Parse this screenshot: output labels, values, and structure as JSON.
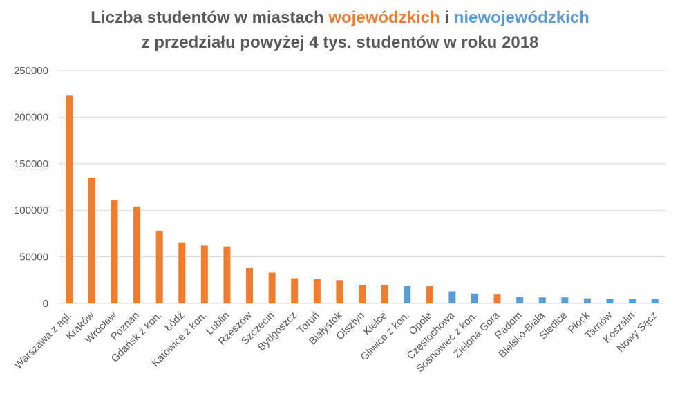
{
  "title": {
    "line1_part1": "Liczba studentów w miastach ",
    "line1_voiv": "wojewódzkich",
    "line1_part2": " i ",
    "line1_nonvoiv": "niewojewódzkich",
    "line2": "z przedziału powyżej 4 tys. studentów w roku 2018"
  },
  "colors": {
    "voivodeship": "#ED7D31",
    "non_voivodeship": "#5B9BD5",
    "grid": "#D9D9D9",
    "text": "#595959"
  },
  "chart_data": {
    "type": "bar",
    "title": "Liczba studentów w miastach wojewódzkich i niewojewódzkich z przedziału powyżej 4 tys. studentów w roku 2018",
    "xlabel": "",
    "ylabel": "",
    "ylim": [
      0,
      250000
    ],
    "yticks": [
      "0",
      "50000",
      "100000",
      "150000",
      "200000",
      "250000"
    ],
    "grid": true,
    "categories": [
      "Warszawa z agl.",
      "Kraków",
      "Wrocław",
      "Poznań",
      "Gdańsk z kon.",
      "Łódź",
      "Katowice z kon.",
      "Lublin",
      "Rzeszów",
      "Szczecin",
      "Bydgoszcz",
      "Toruń",
      "Białystok",
      "Olsztyn",
      "Kielce",
      "Gliwice z kon.",
      "Opole",
      "Częstochowa",
      "Sosnowiec z kon.",
      "Zielona Góra",
      "Radom",
      "Bielsko-Biała",
      "Siedlce",
      "Płock",
      "Tarnów",
      "Koszalin",
      "Nowy Sącz"
    ],
    "values": [
      223000,
      135000,
      110500,
      104000,
      78000,
      65500,
      62000,
      61000,
      38000,
      33000,
      27000,
      26000,
      25000,
      20000,
      20000,
      18500,
      18500,
      13000,
      10500,
      9500,
      7000,
      6500,
      6500,
      5500,
      5000,
      5000,
      4500
    ],
    "groups": [
      "woj",
      "woj",
      "woj",
      "woj",
      "woj",
      "woj",
      "woj",
      "woj",
      "woj",
      "woj",
      "woj",
      "woj",
      "woj",
      "woj",
      "woj",
      "niewoj",
      "woj",
      "niewoj",
      "niewoj",
      "woj",
      "niewoj",
      "niewoj",
      "niewoj",
      "niewoj",
      "niewoj",
      "niewoj",
      "niewoj"
    ]
  }
}
